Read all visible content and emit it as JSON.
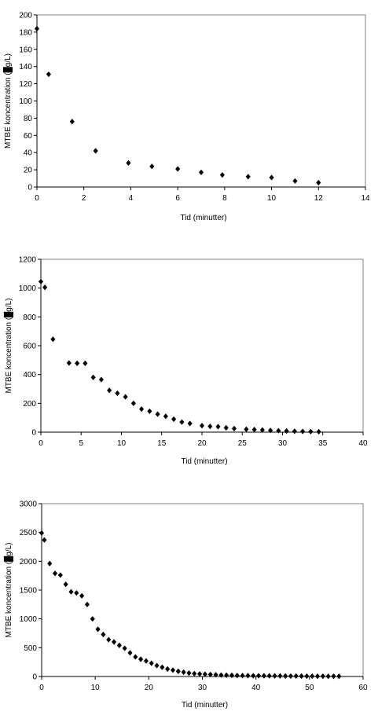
{
  "chart_data": [
    {
      "type": "scatter",
      "xlabel": "Tid (minutter)",
      "ylabel_prefix": "MTBE koncentration (",
      "ylabel_suffix": "g/L)",
      "xlim": [
        0,
        14
      ],
      "ylim": [
        0,
        200
      ],
      "x_ticks": [
        0,
        2,
        4,
        6,
        8,
        10,
        12,
        14
      ],
      "y_ticks": [
        0,
        20,
        40,
        60,
        80,
        100,
        120,
        140,
        160,
        180,
        200
      ],
      "grid": false,
      "marker": "diamond",
      "marker_color": "#000000",
      "series": [
        {
          "points": [
            [
              0,
              184
            ],
            [
              0.5,
              131
            ],
            [
              1.5,
              76
            ],
            [
              2.5,
              42
            ],
            [
              3.9,
              28
            ],
            [
              4.9,
              24
            ],
            [
              6.0,
              21
            ],
            [
              7.0,
              17
            ],
            [
              7.9,
              14
            ],
            [
              9.0,
              12
            ],
            [
              10.0,
              11
            ],
            [
              11.0,
              7
            ],
            [
              12.0,
              5
            ]
          ]
        }
      ]
    },
    {
      "type": "scatter",
      "xlabel": "Tid (minutter)",
      "ylabel_prefix": "MTBE koncentration (",
      "ylabel_suffix": "g/L)",
      "xlim": [
        0,
        40
      ],
      "ylim": [
        0,
        1200
      ],
      "x_ticks": [
        0,
        5,
        10,
        15,
        20,
        25,
        30,
        35,
        40
      ],
      "y_ticks": [
        0,
        200,
        400,
        600,
        800,
        1000,
        1200
      ],
      "grid": false,
      "marker": "diamond",
      "marker_color": "#000000",
      "series": [
        {
          "points": [
            [
              0,
              1045
            ],
            [
              0.5,
              1005
            ],
            [
              1.5,
              645
            ],
            [
              3.5,
              480
            ],
            [
              4.5,
              478
            ],
            [
              5.5,
              478
            ],
            [
              6.5,
              380
            ],
            [
              7.5,
              365
            ],
            [
              8.5,
              290
            ],
            [
              9.5,
              270
            ],
            [
              10.5,
              245
            ],
            [
              11.5,
              200
            ],
            [
              12.5,
              160
            ],
            [
              13.5,
              145
            ],
            [
              14.5,
              125
            ],
            [
              15.5,
              110
            ],
            [
              16.5,
              90
            ],
            [
              17.5,
              70
            ],
            [
              18.5,
              60
            ],
            [
              20.0,
              45
            ],
            [
              21.0,
              40
            ],
            [
              22.0,
              38
            ],
            [
              23.0,
              30
            ],
            [
              24.0,
              25
            ],
            [
              25.5,
              20
            ],
            [
              26.5,
              18
            ],
            [
              27.5,
              15
            ],
            [
              28.5,
              12
            ],
            [
              29.5,
              10
            ],
            [
              30.5,
              8
            ],
            [
              31.5,
              6
            ],
            [
              32.5,
              5
            ],
            [
              33.5,
              4
            ],
            [
              34.5,
              3
            ]
          ]
        }
      ]
    },
    {
      "type": "scatter",
      "xlabel": "Tid (minutter)",
      "ylabel_prefix": "MTBE koncentration (",
      "ylabel_suffix": "g/L)",
      "xlim": [
        0,
        60
      ],
      "ylim": [
        0,
        3000
      ],
      "x_ticks": [
        0,
        10,
        20,
        30,
        40,
        50,
        60
      ],
      "y_ticks": [
        0,
        500,
        1000,
        1500,
        2000,
        2500,
        3000
      ],
      "grid": false,
      "marker": "diamond",
      "marker_color": "#000000",
      "series": [
        {
          "points": [
            [
              0,
              2490
            ],
            [
              0.5,
              2370
            ],
            [
              1.5,
              1960
            ],
            [
              2.5,
              1790
            ],
            [
              3.5,
              1760
            ],
            [
              4.5,
              1600
            ],
            [
              5.5,
              1470
            ],
            [
              6.5,
              1450
            ],
            [
              7.5,
              1400
            ],
            [
              8.5,
              1250
            ],
            [
              9.5,
              1000
            ],
            [
              10.5,
              820
            ],
            [
              11.5,
              730
            ],
            [
              12.5,
              640
            ],
            [
              13.5,
              600
            ],
            [
              14.5,
              540
            ],
            [
              15.5,
              490
            ],
            [
              16.5,
              410
            ],
            [
              17.5,
              340
            ],
            [
              18.5,
              300
            ],
            [
              19.5,
              270
            ],
            [
              20.5,
              230
            ],
            [
              21.5,
              190
            ],
            [
              22.5,
              160
            ],
            [
              23.5,
              130
            ],
            [
              24.5,
              110
            ],
            [
              25.5,
              90
            ],
            [
              26.5,
              75
            ],
            [
              27.5,
              60
            ],
            [
              28.5,
              50
            ],
            [
              29.5,
              45
            ],
            [
              30.5,
              40
            ],
            [
              31.5,
              35
            ],
            [
              32.5,
              30
            ],
            [
              33.5,
              25
            ],
            [
              34.5,
              22
            ],
            [
              35.5,
              20
            ],
            [
              36.5,
              18
            ],
            [
              37.5,
              16
            ],
            [
              38.5,
              15
            ],
            [
              39.5,
              14
            ],
            [
              40.5,
              13
            ],
            [
              41.5,
              12
            ],
            [
              42.5,
              11
            ],
            [
              43.5,
              10
            ],
            [
              44.5,
              10
            ],
            [
              45.5,
              9
            ],
            [
              46.5,
              8
            ],
            [
              47.5,
              8
            ],
            [
              48.5,
              7
            ],
            [
              49.5,
              6
            ],
            [
              50.5,
              6
            ],
            [
              51.5,
              5
            ],
            [
              52.5,
              5
            ],
            [
              53.5,
              4
            ],
            [
              54.5,
              4
            ],
            [
              55.5,
              3
            ]
          ]
        }
      ]
    }
  ]
}
